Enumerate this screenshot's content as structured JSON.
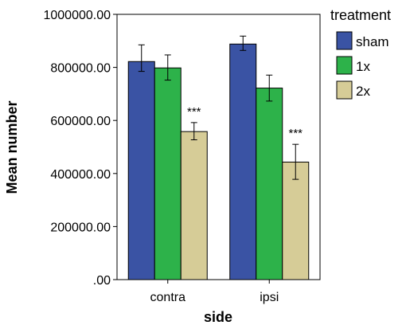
{
  "chart_data": {
    "type": "bar",
    "xlabel": "side",
    "ylabel": "Mean number",
    "categories": [
      "contra",
      "ipsi"
    ],
    "ylim": [
      0,
      1000000
    ],
    "yticks": [
      0,
      200000,
      400000,
      600000,
      800000,
      1000000
    ],
    "ytick_labels": [
      ".00",
      "200000.00",
      "400000.00",
      "600000.00",
      "800000.00",
      "1000000.00"
    ],
    "legend_title": "treatment",
    "legend_position": "right",
    "grid": false,
    "series": [
      {
        "name": "sham",
        "color": "#3A53A4",
        "values": [
          822000,
          888000
        ],
        "err_low": [
          785000,
          864000
        ],
        "err_high": [
          885000,
          918000
        ],
        "labels": [
          "",
          ""
        ]
      },
      {
        "name": "1x",
        "color": "#2DB24A",
        "values": [
          798000,
          722000
        ],
        "err_low": [
          752000,
          673000
        ],
        "err_high": [
          847000,
          771000
        ],
        "labels": [
          "",
          ""
        ]
      },
      {
        "name": "2x",
        "color": "#D6CC97",
        "values": [
          558000,
          443000
        ],
        "err_low": [
          527000,
          378000
        ],
        "err_high": [
          592000,
          510000
        ],
        "labels": [
          "***",
          "***"
        ]
      }
    ]
  }
}
